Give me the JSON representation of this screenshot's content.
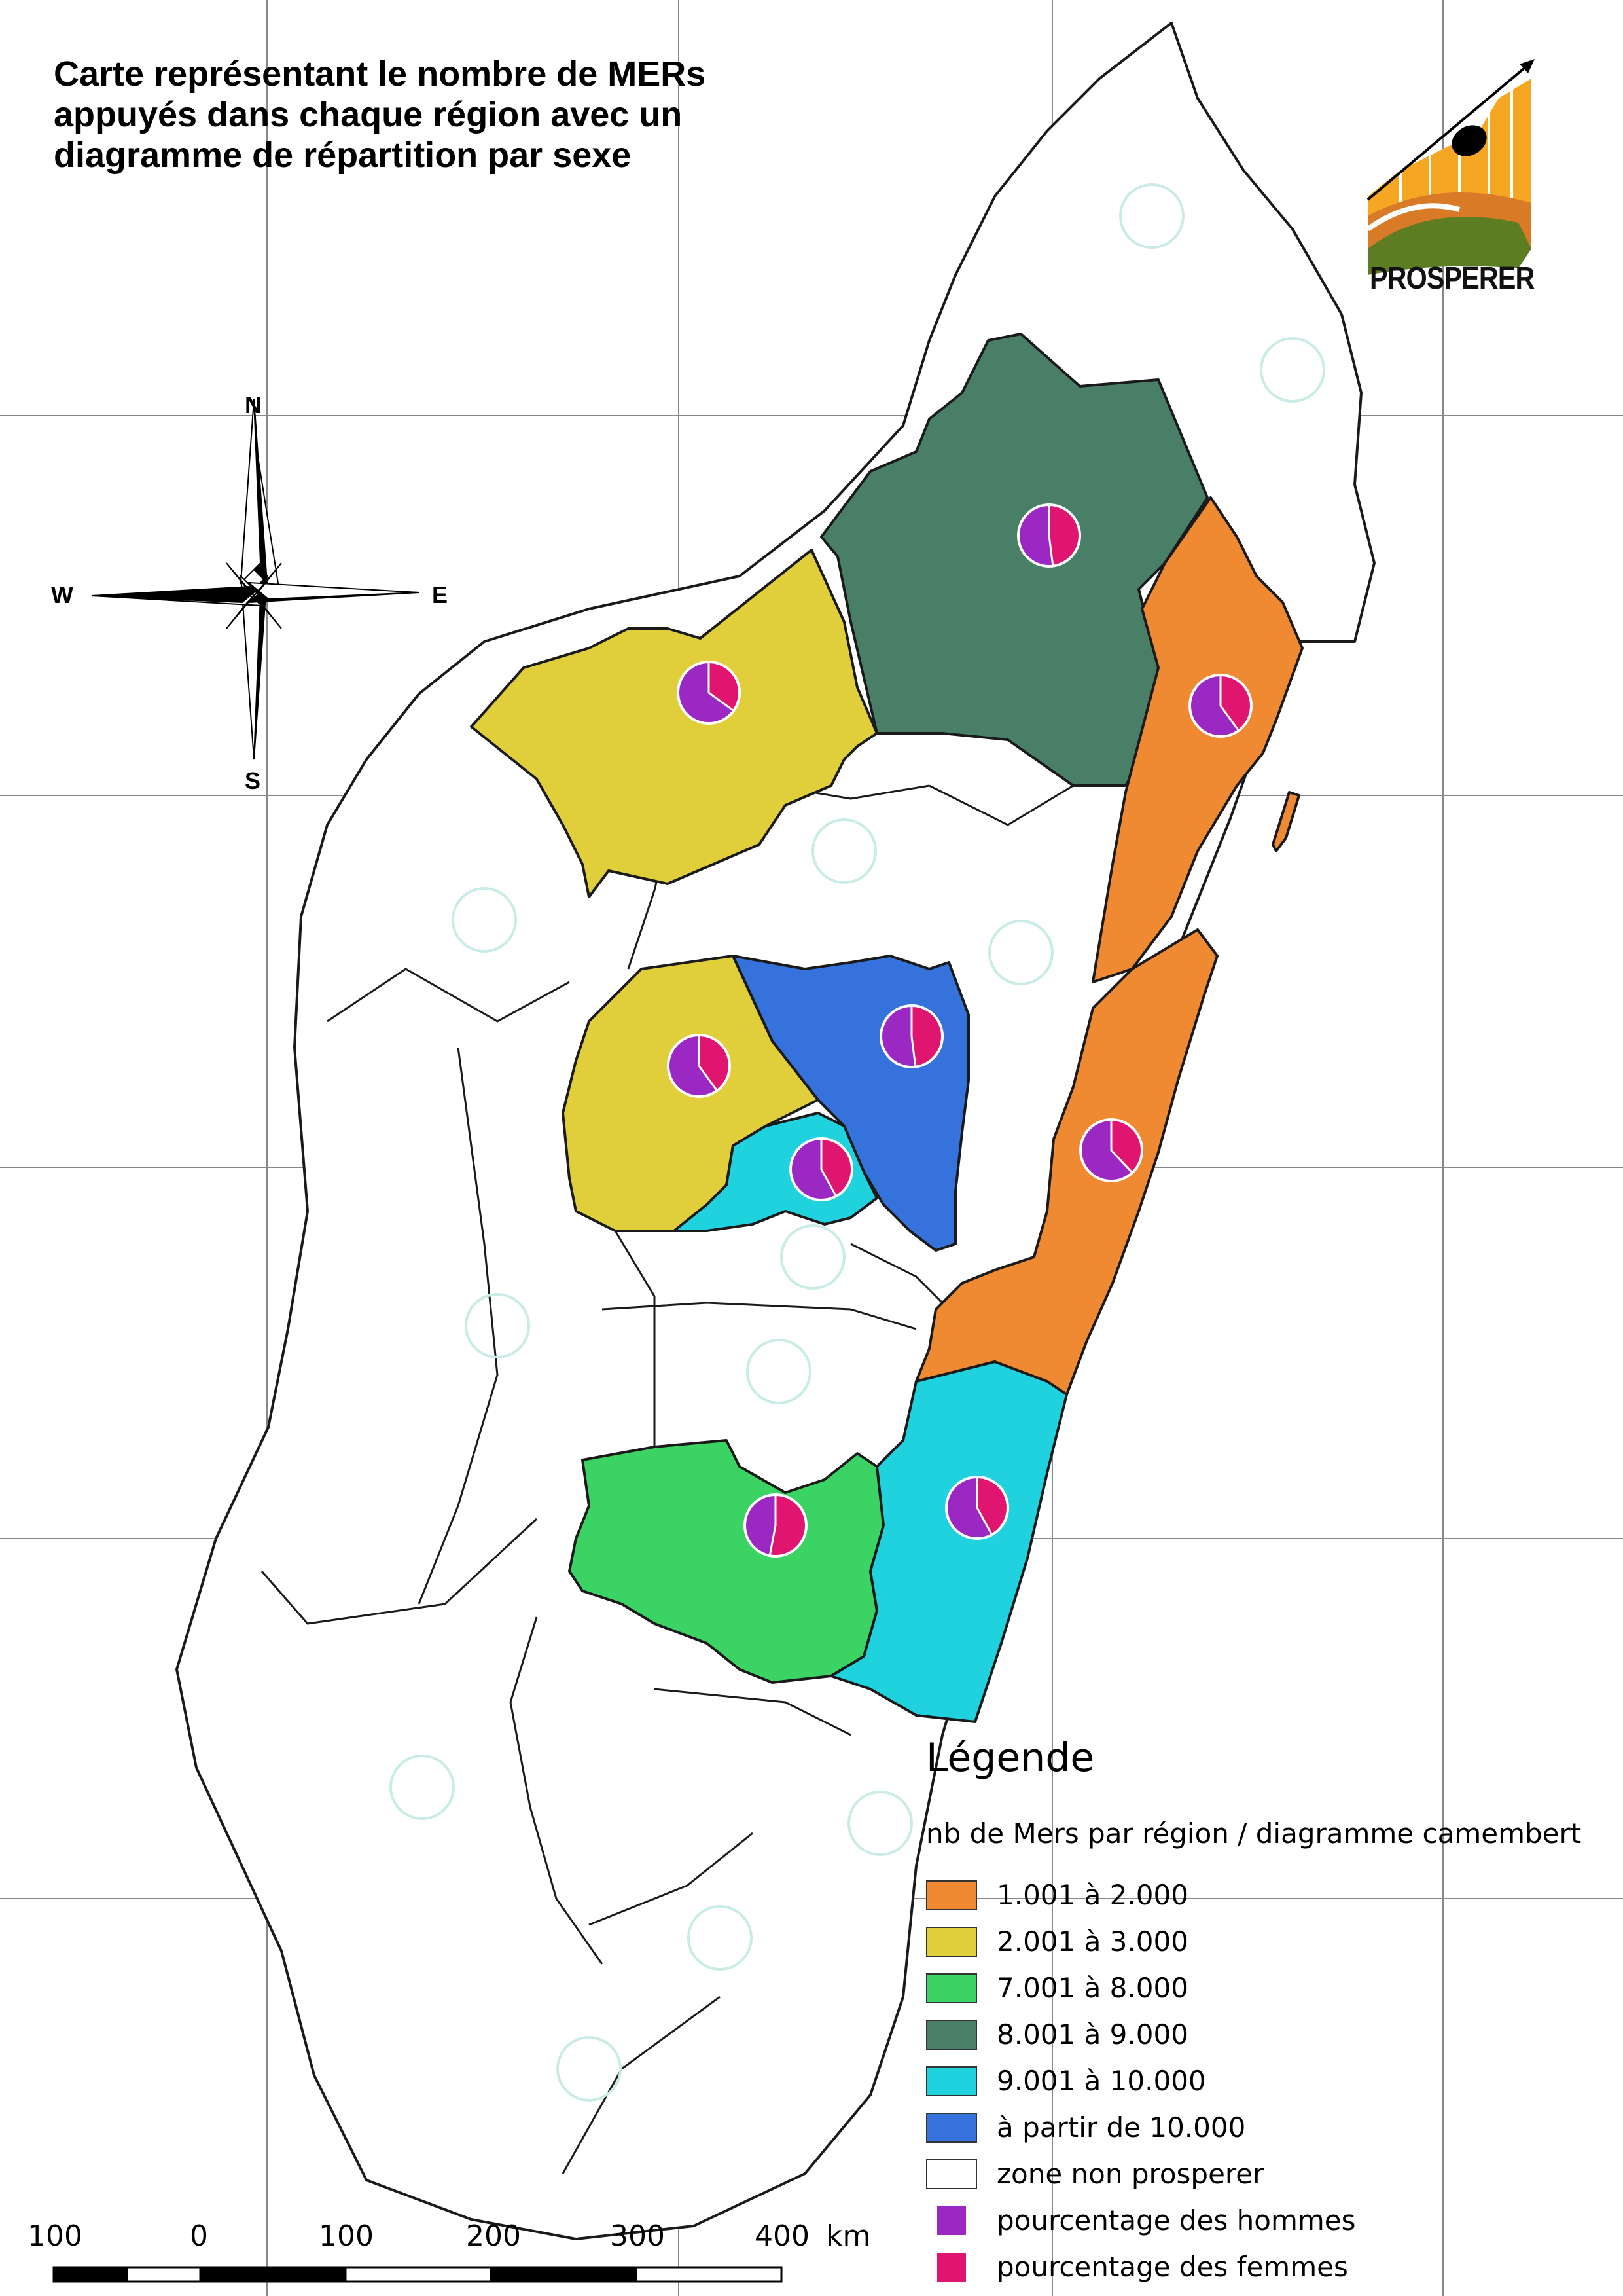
{
  "title": {
    "line1": "Carte représentant le nombre de MERs",
    "line2": "appuyés dans chaque région avec un",
    "line3": "diagramme de répartition par sexe"
  },
  "compass": {
    "north": "N",
    "south": "S",
    "east": "E",
    "west": "W"
  },
  "logo": {
    "text": "PROSPERER"
  },
  "legend": {
    "title": "Légende",
    "subtitle": "nb de Mers par région / diagramme camembert",
    "items": [
      {
        "label": "1.001 à 2.000",
        "color": "#f08a32"
      },
      {
        "label": "2.001 à 3.000",
        "color": "#e0cf3a"
      },
      {
        "label": "7.001 à 8.000",
        "color": "#3cd365"
      },
      {
        "label": "8.001 à 9.000",
        "color": "#4a7f67"
      },
      {
        "label": "9.001 à 10.000",
        "color": "#20d2de"
      },
      {
        "label": "à partir de 10.000",
        "color": "#3572db"
      },
      {
        "label": "zone non prosperer",
        "color": "#ffffff"
      },
      {
        "label": "pourcentage des hommes",
        "color": "#9b28c2"
      },
      {
        "label": "pourcentage des femmes",
        "color": "#e0156f"
      }
    ]
  },
  "scale_bar": {
    "labels": [
      "100",
      "0",
      "100",
      "200",
      "300",
      "400"
    ],
    "unit": "km"
  },
  "regions": [
    {
      "legend_class": "8.001 à 9.000",
      "pct_hommes": 52
    },
    {
      "legend_class": "2.001 à 3.000",
      "pct_hommes": 65
    },
    {
      "legend_class": "1.001 à 2.000",
      "pct_hommes": 60
    },
    {
      "legend_class": "2.001 à 3.000",
      "pct_hommes": 60
    },
    {
      "legend_class": "à partir de 10.000",
      "pct_hommes": 52
    },
    {
      "legend_class": "9.001 à 10.000",
      "pct_hommes": 58
    },
    {
      "legend_class": "1.001 à 2.000",
      "pct_hommes": 62
    },
    {
      "legend_class": "7.001 à 8.000",
      "pct_hommes": 47
    },
    {
      "legend_class": "9.001 à 10.000",
      "pct_hommes": 58
    }
  ],
  "colors": {
    "hommes": "#9b28c2",
    "femmes": "#e0156f",
    "white_region": "#ffffff",
    "outline": "#1a1a1a",
    "grid": "#777777"
  }
}
